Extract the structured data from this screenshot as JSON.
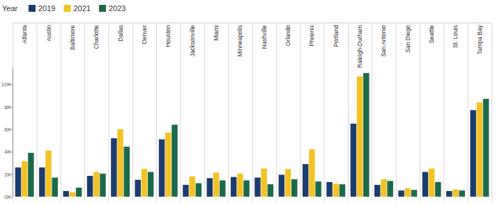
{
  "chart_data": {
    "type": "bar",
    "legend_title": "Year",
    "legend": "top-left",
    "grid": false,
    "categories": [
      "Atlanta",
      "Austin",
      "Baltimore",
      "Charlotte",
      "Dallas",
      "Denver",
      "Houston",
      "Jacksonville",
      "Miami",
      "Minneapolis",
      "Nashville",
      "Orlando",
      "Phoenix",
      "Portland",
      "Raleigh-Durham",
      "San Antonio",
      "San Diego",
      "Seattle",
      "St. Louis",
      "Tampa Bay"
    ],
    "series": [
      {
        "name": "2019",
        "color": "#1d3c6e",
        "values": [
          2600,
          2600,
          500,
          1850,
          5200,
          1500,
          5100,
          1050,
          1650,
          1750,
          1700,
          1950,
          2900,
          1300,
          6500,
          1050,
          550,
          2200,
          500,
          7700
        ]
      },
      {
        "name": "2021",
        "color": "#f4c224",
        "values": [
          3150,
          4100,
          400,
          2200,
          6000,
          2450,
          5700,
          1800,
          2150,
          2050,
          2500,
          2450,
          4200,
          1150,
          10700,
          1550,
          750,
          2500,
          650,
          8400
        ]
      },
      {
        "name": "2023",
        "color": "#1b6b49",
        "values": [
          3900,
          1700,
          800,
          2050,
          4450,
          2200,
          6400,
          1200,
          1450,
          1450,
          1100,
          1550,
          1350,
          1100,
          11000,
          1400,
          600,
          1300,
          550,
          8700
        ]
      }
    ],
    "ylim": [
      0,
      11500
    ],
    "yticks": [
      {
        "value": 0,
        "label": "0K"
      },
      {
        "value": 2000,
        "label": "2K"
      },
      {
        "value": 4000,
        "label": "4K"
      },
      {
        "value": 6000,
        "label": "6K"
      },
      {
        "value": 8000,
        "label": "8K"
      },
      {
        "value": 10000,
        "label": "10K"
      }
    ]
  }
}
